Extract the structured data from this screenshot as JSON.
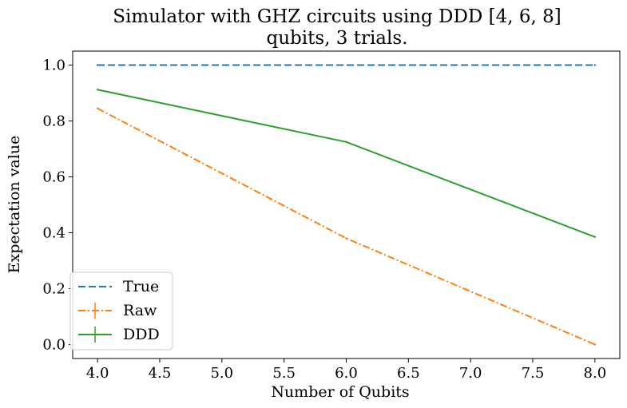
{
  "chart_data": {
    "type": "line",
    "title_lines": [
      "Simulator with GHZ circuits using DDD [4, 6, 8]",
      "qubits, 3 trials."
    ],
    "xlabel": "Number of Qubits",
    "ylabel": "Expectation value",
    "xlim": [
      3.8,
      8.2
    ],
    "ylim": [
      -0.05,
      1.05
    ],
    "xticks": [
      4.0,
      4.5,
      5.0,
      5.5,
      6.0,
      6.5,
      7.0,
      7.5,
      8.0
    ],
    "xtick_labels": [
      "4.0",
      "4.5",
      "5.0",
      "5.5",
      "6.0",
      "6.5",
      "7.0",
      "7.5",
      "8.0"
    ],
    "yticks": [
      0.0,
      0.2,
      0.4,
      0.6,
      0.8,
      1.0
    ],
    "ytick_labels": [
      "0.0",
      "0.2",
      "0.4",
      "0.6",
      "0.8",
      "1.0"
    ],
    "grid": false,
    "legend_position": "lower-left",
    "series": [
      {
        "name": "True",
        "x": [
          4,
          8
        ],
        "values": [
          1.0,
          1.0
        ],
        "color": "#1f77b4",
        "linestyle": "dashed"
      },
      {
        "name": "Raw",
        "x": [
          4,
          6,
          8
        ],
        "values": [
          0.845,
          0.38,
          0.0
        ],
        "color": "#ff7f0e",
        "linestyle": "dashdot",
        "errorbars": true
      },
      {
        "name": "DDD",
        "x": [
          4,
          6,
          8
        ],
        "values": [
          0.912,
          0.725,
          0.385
        ],
        "color": "#2ca02c",
        "linestyle": "solid",
        "errorbars": true
      }
    ]
  }
}
